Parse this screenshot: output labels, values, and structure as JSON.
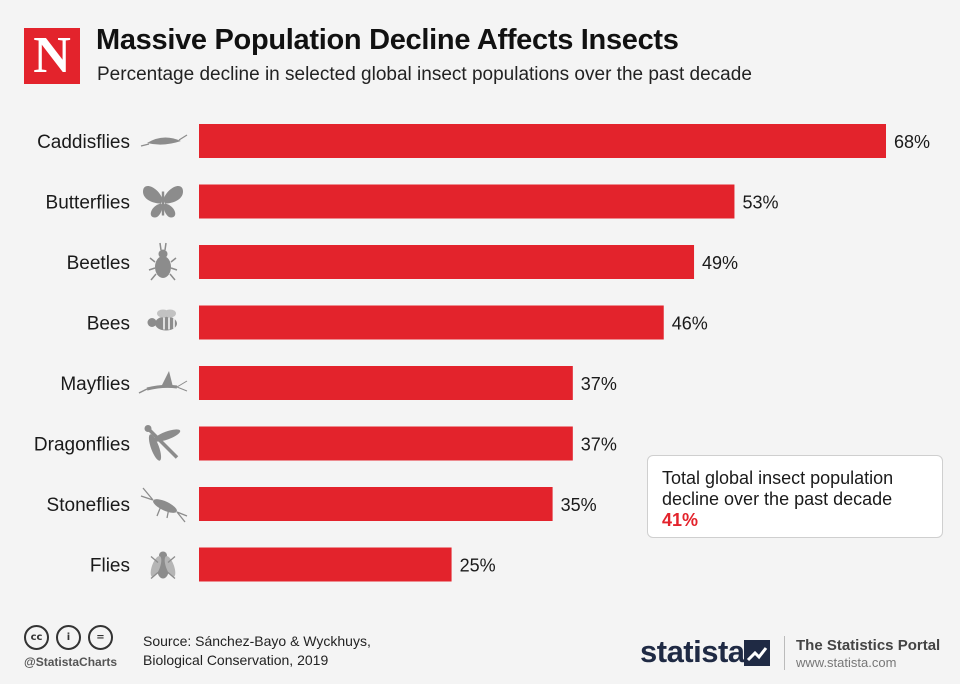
{
  "header": {
    "logo_letter": "N",
    "title": "Massive Population Decline Affects Insects",
    "subtitle": "Percentage decline in selected global insect populations over the past decade"
  },
  "chart_data": {
    "type": "bar",
    "orientation": "horizontal",
    "title": "Massive Population Decline Affects Insects",
    "subtitle": "Percentage decline in selected global insect populations over the past decade",
    "categories": [
      "Caddisflies",
      "Butterflies",
      "Beetles",
      "Bees",
      "Mayflies",
      "Dragonflies",
      "Stoneflies",
      "Flies"
    ],
    "values": [
      68,
      53,
      49,
      46,
      37,
      37,
      35,
      25
    ],
    "value_suffix": "%",
    "icons": [
      "caddisfly-icon",
      "butterfly-icon",
      "beetle-icon",
      "bee-icon",
      "mayfly-icon",
      "dragonfly-icon",
      "stonefly-icon",
      "fly-icon"
    ],
    "xlim": [
      0,
      68
    ],
    "bar_color": "#e3232c",
    "icon_color": "#8c8c8c"
  },
  "callout": {
    "line1": "Total global insect population",
    "line2": "decline over the past decade",
    "value": "41%"
  },
  "footer": {
    "license_icons": [
      "cc",
      "i",
      "="
    ],
    "handle": "@StatistaCharts",
    "source_line1": "Source: Sánchez-Bayo & Wyckhuys,",
    "source_line2": "Biological Conservation, 2019",
    "brand": "statista",
    "portal_title": "The Statistics Portal",
    "portal_url": "www.statista.com"
  },
  "colors": {
    "accent": "#e3232c",
    "background": "#f4f4f4",
    "brand_navy": "#1f2a44"
  }
}
